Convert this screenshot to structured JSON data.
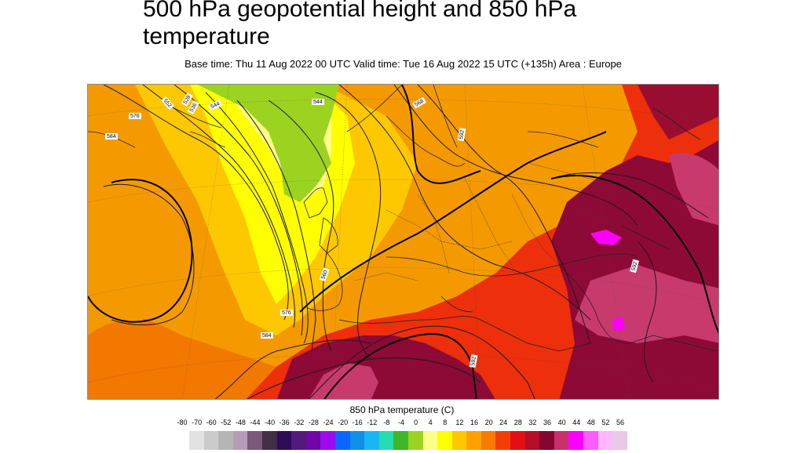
{
  "title": "500 hPa geopotential height and 850 hPa temperature",
  "subtitle": "Base time: Thu 11 Aug 2022 00 UTC Valid time: Tue 16 Aug 2022 15 UTC (+135h) Area : Europe",
  "legend": {
    "title": "850 hPa temperature (C)",
    "ticks": [
      "-80",
      "-70",
      "-60",
      "-52",
      "-48",
      "-44",
      "-40",
      "-36",
      "-32",
      "-28",
      "-24",
      "-20",
      "-16",
      "-12",
      "-8",
      "-4",
      "0",
      "4",
      "8",
      "12",
      "16",
      "20",
      "24",
      "28",
      "32",
      "36",
      "40",
      "44",
      "48",
      "52",
      "56"
    ],
    "colors": [
      "#e2e2e2",
      "#cbcbcb",
      "#b5b5b5",
      "#b79bb9",
      "#7a597b",
      "#412f47",
      "#2d0b55",
      "#53197c",
      "#6f06a7",
      "#a008f0",
      "#0b65ff",
      "#108fe9",
      "#17b7f5",
      "#24dcb0",
      "#3fb62a",
      "#9bd320",
      "#fefe8a",
      "#fffe00",
      "#fec800",
      "#ffa200",
      "#fb7a00",
      "#f53d08",
      "#e50e16",
      "#b50d2a",
      "#85062f",
      "#c7306a",
      "#fb00ff",
      "#fe5cfc",
      "#ffb7ff",
      "#e9c9e6"
    ]
  },
  "map": {
    "contour_labels": [
      "528",
      "536",
      "544",
      "544",
      "552",
      "560",
      "568",
      "576",
      "576",
      "584",
      "584",
      "592",
      "592",
      "592",
      "592",
      "592",
      "592",
      "584",
      "576",
      "568"
    ]
  }
}
